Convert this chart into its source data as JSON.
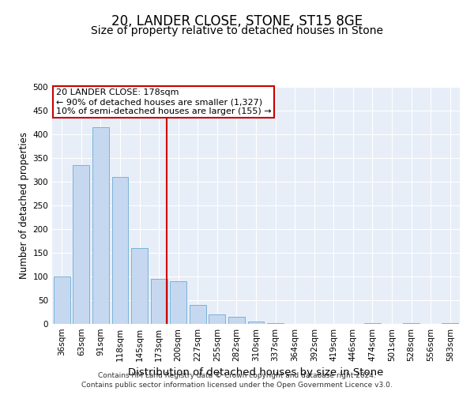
{
  "title1": "20, LANDER CLOSE, STONE, ST15 8GE",
  "title2": "Size of property relative to detached houses in Stone",
  "xlabel": "Distribution of detached houses by size in Stone",
  "ylabel": "Number of detached properties",
  "bar_labels": [
    "36sqm",
    "63sqm",
    "91sqm",
    "118sqm",
    "145sqm",
    "173sqm",
    "200sqm",
    "227sqm",
    "255sqm",
    "282sqm",
    "310sqm",
    "337sqm",
    "364sqm",
    "392sqm",
    "419sqm",
    "446sqm",
    "474sqm",
    "501sqm",
    "528sqm",
    "556sqm",
    "583sqm"
  ],
  "bar_values": [
    100,
    335,
    415,
    310,
    160,
    95,
    90,
    40,
    20,
    15,
    5,
    2,
    0,
    0,
    0,
    0,
    1,
    0,
    1,
    0,
    1
  ],
  "bar_color": "#c5d8f0",
  "bar_edge_color": "#6aaad4",
  "vline_color": "#cc0000",
  "annotation_text": "20 LANDER CLOSE: 178sqm\n← 90% of detached houses are smaller (1,327)\n10% of semi-detached houses are larger (155) →",
  "annotation_box_color": "#ffffff",
  "annotation_box_edge_color": "#cc0000",
  "ylim": [
    0,
    500
  ],
  "yticks": [
    0,
    50,
    100,
    150,
    200,
    250,
    300,
    350,
    400,
    450,
    500
  ],
  "plot_bg_color": "#e8eef8",
  "footer_text": "Contains HM Land Registry data © Crown copyright and database right 2024.\nContains public sector information licensed under the Open Government Licence v3.0.",
  "title1_fontsize": 12,
  "title2_fontsize": 10,
  "xlabel_fontsize": 9.5,
  "ylabel_fontsize": 8.5,
  "tick_fontsize": 7.5,
  "annotation_fontsize": 8,
  "footer_fontsize": 6.5
}
